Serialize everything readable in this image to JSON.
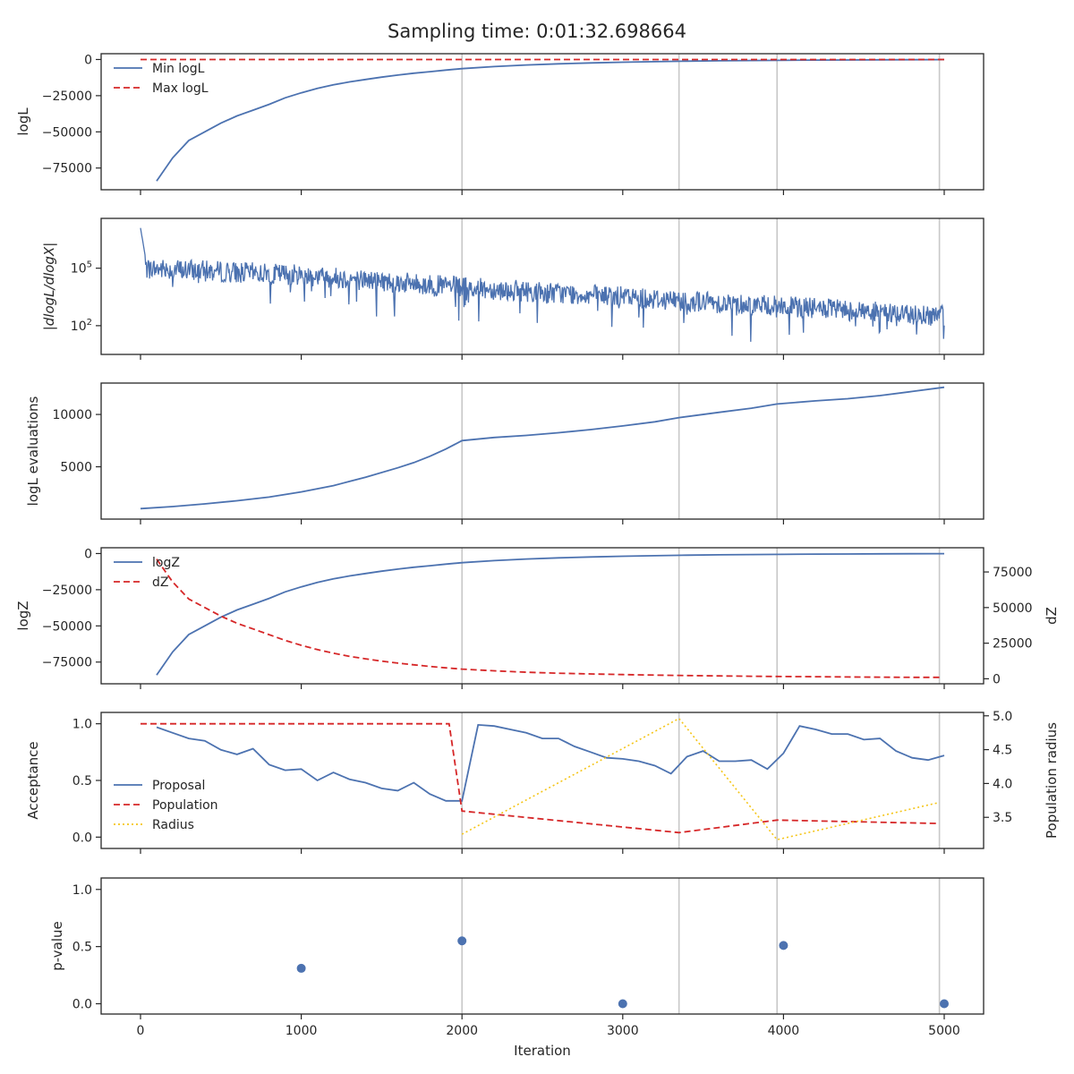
{
  "title": "Sampling time: 0:01:32.698664",
  "colors": {
    "blue": "#4c72b0",
    "red": "#d62728",
    "yellow": "#f5c518",
    "vline": "#c8c8c8",
    "axis": "#262626"
  },
  "vlines": [
    2000,
    3350,
    3960,
    4970
  ],
  "x_ticks": [
    0,
    1000,
    2000,
    3000,
    4000,
    5000
  ],
  "x_label": "Iteration",
  "chart_data": [
    {
      "id": "logl",
      "type": "line",
      "ylabel": "logL",
      "ylim": [
        -90000,
        4000
      ],
      "yticks": [
        0,
        -25000,
        -50000,
        -75000
      ],
      "ytick_labels": [
        "0",
        "−25000",
        "−50000",
        "−75000"
      ],
      "legend": "top-left",
      "series": [
        {
          "name": "Min logL",
          "style": "solid",
          "color": "blue",
          "x": [
            100,
            200,
            300,
            400,
            500,
            600,
            700,
            800,
            900,
            1000,
            1100,
            1200,
            1300,
            1400,
            1500,
            1600,
            1700,
            1800,
            1900,
            2000,
            2200,
            2400,
            2600,
            2800,
            3000,
            3200,
            3400,
            3600,
            3800,
            4000,
            4200,
            4400,
            4600,
            4800,
            5000
          ],
          "y": [
            -84000,
            -68000,
            -56000,
            -50000,
            -44000,
            -39000,
            -35000,
            -31000,
            -26500,
            -23000,
            -20000,
            -17500,
            -15500,
            -13800,
            -12200,
            -10800,
            -9500,
            -8400,
            -7300,
            -6300,
            -4900,
            -3800,
            -3000,
            -2400,
            -1900,
            -1500,
            -1150,
            -900,
            -700,
            -550,
            -400,
            -300,
            -200,
            -120,
            -80
          ]
        },
        {
          "name": "Max logL",
          "style": "dashed",
          "color": "red",
          "x": [
            0,
            5000
          ],
          "y": [
            0,
            0
          ]
        }
      ]
    },
    {
      "id": "dlogl",
      "type": "line",
      "ylabel": "|dlogL/dlogX|",
      "scale": "log",
      "ylim_log10": [
        0.5,
        7.6
      ],
      "yticks_log10": [
        5,
        2
      ],
      "ytick_labels": [
        {
          "base": "10",
          "exp": "5"
        },
        {
          "base": "10",
          "exp": "2"
        }
      ],
      "legend": "none",
      "series": [
        {
          "name": "",
          "style": "noisy",
          "color": "blue",
          "x_range": [
            0,
            5000
          ],
          "trend_log10": [
            [
              0,
              5.0
            ],
            [
              1000,
              4.65
            ],
            [
              2000,
              4.0
            ],
            [
              3000,
              3.5
            ],
            [
              4000,
              3.0
            ],
            [
              5000,
              2.5
            ]
          ],
          "noise_amplitude_log10": 0.55,
          "spike_depth_log10": 1.8,
          "start_peak_log10": 7.1
        }
      ]
    },
    {
      "id": "evals",
      "type": "line",
      "ylabel": "logL evaluations",
      "ylim": [
        0,
        13000
      ],
      "yticks": [
        10000,
        5000
      ],
      "ytick_labels": [
        "10000",
        "5000"
      ],
      "legend": "none",
      "series": [
        {
          "name": "",
          "style": "solid",
          "color": "blue",
          "x": [
            0,
            200,
            400,
            600,
            800,
            1000,
            1200,
            1300,
            1400,
            1600,
            1700,
            1800,
            1900,
            2000,
            2200,
            2400,
            2600,
            2800,
            3000,
            3200,
            3350,
            3600,
            3800,
            3960,
            4200,
            4400,
            4600,
            4800,
            5000
          ],
          "y": [
            1000,
            1200,
            1450,
            1750,
            2100,
            2600,
            3200,
            3600,
            4000,
            4900,
            5400,
            6000,
            6700,
            7500,
            7800,
            8000,
            8250,
            8550,
            8900,
            9300,
            9700,
            10200,
            10600,
            11000,
            11300,
            11500,
            11800,
            12200,
            12600
          ]
        }
      ]
    },
    {
      "id": "logz",
      "type": "line",
      "ylabel": "logZ",
      "ylabel_right": "dZ",
      "ylim": [
        -90000,
        4000
      ],
      "yticks": [
        0,
        -25000,
        -50000,
        -75000
      ],
      "ytick_labels": [
        "0",
        "−25000",
        "−50000",
        "−75000"
      ],
      "ylim_right": [
        -3500,
        92000
      ],
      "yticks_right": [
        75000,
        50000,
        25000,
        0
      ],
      "ytick_labels_right": [
        "75000",
        "50000",
        "25000",
        "0"
      ],
      "legend": "top-left",
      "series": [
        {
          "name": "logZ",
          "style": "solid",
          "color": "blue",
          "axis": "left",
          "x": [
            100,
            200,
            300,
            400,
            500,
            600,
            700,
            800,
            900,
            1000,
            1100,
            1200,
            1300,
            1400,
            1500,
            1600,
            1700,
            1800,
            1900,
            2000,
            2200,
            2400,
            2600,
            2800,
            3000,
            3200,
            3400,
            3600,
            3800,
            4000,
            4200,
            4400,
            4600,
            4800,
            5000
          ],
          "y": [
            -84000,
            -68000,
            -56000,
            -50000,
            -44000,
            -39000,
            -35000,
            -31000,
            -26500,
            -23000,
            -20000,
            -17500,
            -15500,
            -13800,
            -12200,
            -10800,
            -9500,
            -8400,
            -7300,
            -6300,
            -4900,
            -3800,
            -3000,
            -2400,
            -1900,
            -1500,
            -1150,
            -900,
            -700,
            -550,
            -400,
            -300,
            -200,
            -120,
            -80
          ]
        },
        {
          "name": "dZ",
          "style": "dashed",
          "color": "red",
          "axis": "right",
          "x": [
            100,
            200,
            300,
            400,
            500,
            600,
            700,
            800,
            900,
            1000,
            1100,
            1200,
            1300,
            1400,
            1500,
            1600,
            1700,
            1800,
            1900,
            2000,
            2200,
            2400,
            2600,
            2800,
            3000,
            3200,
            3400,
            3600,
            3800,
            4000,
            4200,
            4400,
            4600,
            4800,
            4970
          ],
          "y": [
            84000,
            68000,
            56000,
            50000,
            44000,
            39000,
            35000,
            31000,
            27000,
            23500,
            20500,
            18000,
            15700,
            14000,
            12400,
            11000,
            9800,
            8700,
            7700,
            6800,
            5600,
            4600,
            3900,
            3400,
            3000,
            2600,
            2300,
            2000,
            1800,
            1600,
            1450,
            1300,
            1150,
            1050,
            1000
          ]
        }
      ]
    },
    {
      "id": "accept",
      "type": "line",
      "ylabel": "Acceptance",
      "ylabel_right": "Population radius",
      "ylim": [
        -0.1,
        1.1
      ],
      "yticks": [
        1.0,
        0.5,
        0.0
      ],
      "ytick_labels": [
        "1.0",
        "0.5",
        "0.0"
      ],
      "ylim_right": [
        3.04,
        5.05
      ],
      "yticks_right": [
        5.0,
        4.5,
        4.0,
        3.5
      ],
      "ytick_labels_right": [
        "5.0",
        "4.5",
        "4.0",
        "3.5"
      ],
      "legend": "bottom-left",
      "series": [
        {
          "name": "Proposal",
          "style": "solid",
          "color": "blue",
          "axis": "left",
          "x": [
            100,
            200,
            300,
            400,
            500,
            600,
            700,
            800,
            900,
            1000,
            1100,
            1200,
            1300,
            1400,
            1500,
            1600,
            1700,
            1800,
            1900,
            2000,
            2100,
            2200,
            2300,
            2400,
            2500,
            2600,
            2700,
            2800,
            2900,
            3000,
            3100,
            3200,
            3300,
            3400,
            3500,
            3600,
            3700,
            3800,
            3900,
            4000,
            4100,
            4200,
            4300,
            4400,
            4500,
            4600,
            4700,
            4800,
            4900,
            5000
          ],
          "y": [
            0.97,
            0.92,
            0.87,
            0.85,
            0.77,
            0.73,
            0.78,
            0.64,
            0.59,
            0.6,
            0.5,
            0.57,
            0.51,
            0.48,
            0.43,
            0.41,
            0.48,
            0.38,
            0.32,
            0.32,
            0.99,
            0.98,
            0.95,
            0.92,
            0.87,
            0.87,
            0.8,
            0.75,
            0.7,
            0.69,
            0.67,
            0.63,
            0.56,
            0.71,
            0.76,
            0.67,
            0.67,
            0.68,
            0.6,
            0.74,
            0.98,
            0.95,
            0.91,
            0.91,
            0.86,
            0.87,
            0.76,
            0.7,
            0.68,
            0.72
          ]
        },
        {
          "name": "Population",
          "style": "dashed",
          "color": "red",
          "axis": "left",
          "x": [
            0,
            1920,
            2000,
            3350,
            3960,
            4970
          ],
          "y": [
            1.0,
            1.0,
            0.23,
            0.04,
            0.15,
            0.12
          ]
        },
        {
          "name": "Radius",
          "style": "dotted",
          "color": "yellow",
          "axis": "right",
          "x": [
            2000,
            3350,
            3960,
            4970
          ],
          "y": [
            3.25,
            4.96,
            3.17,
            3.72
          ]
        }
      ]
    },
    {
      "id": "pvalue",
      "type": "scatter",
      "ylabel": "p-value",
      "ylim": [
        -0.09,
        1.1
      ],
      "yticks": [
        1.0,
        0.5,
        0.0
      ],
      "ytick_labels": [
        "1.0",
        "0.5",
        "0.0"
      ],
      "legend": "none",
      "series": [
        {
          "name": "",
          "color": "blue",
          "x": [
            1000,
            2000,
            3000,
            4000,
            5000
          ],
          "y": [
            0.31,
            0.55,
            0.0,
            0.51,
            0.0
          ]
        }
      ]
    }
  ]
}
